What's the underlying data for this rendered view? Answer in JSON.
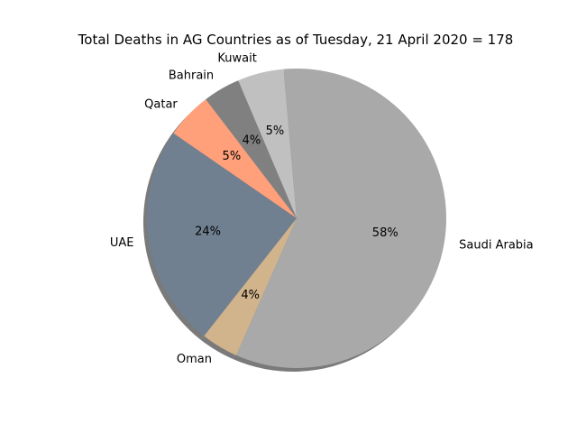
{
  "chart_data": {
    "type": "pie",
    "title": "Total Deaths in AG Countries as of Tuesday, 21 April 2020 = 178",
    "start_angle_deg": 95,
    "counterclockwise": true,
    "shadow": true,
    "slices": [
      {
        "label": "Kuwait",
        "value": 5,
        "pct_label": "5%",
        "color": "#c0c0c0"
      },
      {
        "label": "Bahrain",
        "value": 4,
        "pct_label": "4%",
        "color": "#808080"
      },
      {
        "label": "Qatar",
        "value": 5,
        "pct_label": "5%",
        "color": "#ffa07a"
      },
      {
        "label": "UAE",
        "value": 24,
        "pct_label": "24%",
        "color": "#708090"
      },
      {
        "label": "Oman",
        "value": 4,
        "pct_label": "4%",
        "color": "#d2b48c"
      },
      {
        "label": "Saudi Arabia",
        "value": 58,
        "pct_label": "58%",
        "color": "#a9a9a9"
      }
    ]
  }
}
